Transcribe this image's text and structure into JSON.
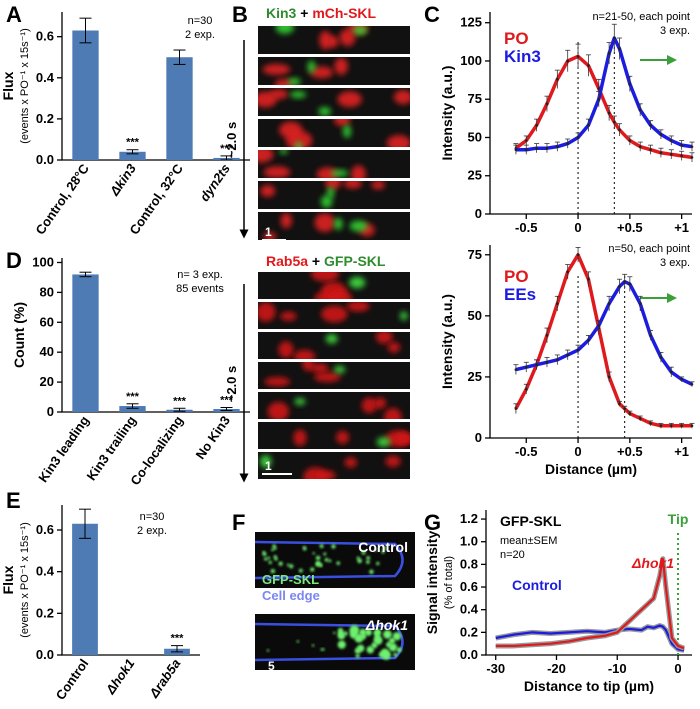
{
  "panel_letters": [
    "A",
    "B",
    "C",
    "D",
    "E",
    "F",
    "G"
  ],
  "chart_data": [
    {
      "type": "bar",
      "categories": [
        "Control, 28°C",
        "Δkin3",
        "Control, 32°C",
        "dyn2ts"
      ],
      "values": [
        0.63,
        0.04,
        0.5,
        0.01
      ],
      "errors": [
        0.06,
        0.01,
        0.035,
        0.01
      ],
      "significance": [
        null,
        "***",
        null,
        "***"
      ],
      "color": "#4f7bb5",
      "ylabel": [
        "Flux",
        "(events x PO⁻¹ x 15s⁻¹)"
      ],
      "annotation": [
        "n=30",
        "2 exp."
      ],
      "ylim": [
        0,
        0.72
      ],
      "yticks": [
        {
          "value": 0,
          "label": "0.0"
        },
        {
          "value": 0.2,
          "label": "0.2"
        },
        {
          "value": 0.4,
          "label": "0.4"
        },
        {
          "value": 0.6,
          "label": "0.6"
        }
      ]
    },
    {
      "type": "line",
      "annotation": [
        "n=21-50, each point",
        "3 exp."
      ],
      "ylabel": [
        "Intensity (a.u.)"
      ],
      "x": [
        -0.6,
        -0.5,
        -0.4,
        -0.3,
        -0.2,
        -0.1,
        0,
        0.1,
        0.2,
        0.3,
        0.35,
        0.4,
        0.5,
        0.6,
        0.7,
        0.8,
        0.9,
        1.0,
        1.1
      ],
      "series": [
        {
          "name": "PO",
          "color": "#e0191c",
          "values": [
            43,
            48,
            58,
            72,
            88,
            100,
            103,
            97,
            82,
            66,
            60,
            55,
            48,
            44,
            42,
            40,
            39,
            38,
            37
          ],
          "errors": [
            3,
            3,
            4,
            5,
            6,
            7,
            8,
            7,
            6,
            5,
            4,
            4,
            3,
            3,
            3,
            3,
            3,
            3,
            3
          ]
        },
        {
          "name": "Kin3",
          "color": "#1c1ce0",
          "values": [
            42,
            42,
            43,
            43,
            44,
            46,
            50,
            58,
            75,
            105,
            115,
            108,
            85,
            68,
            58,
            52,
            48,
            45,
            44
          ],
          "errors": [
            3,
            3,
            3,
            3,
            3,
            3,
            3,
            4,
            5,
            7,
            9,
            7,
            5,
            4,
            3,
            3,
            3,
            3,
            3
          ]
        }
      ],
      "vlines": [
        0,
        0.35
      ],
      "xlim": [
        -0.85,
        1.1
      ],
      "xticks": [
        -0.5,
        0,
        {
          "value": 0.5,
          "label": "+0.5"
        },
        {
          "value": 1,
          "label": "+1"
        }
      ],
      "ylim": [
        0,
        132
      ],
      "yticks": [
        0,
        25,
        50,
        75,
        100,
        125
      ]
    },
    {
      "type": "bar",
      "categories": [
        "Kin3 leading",
        "Kin3 trailing",
        "Co-localizing",
        "No Kin3"
      ],
      "values": [
        92,
        4,
        1.5,
        2
      ],
      "errors": [
        1.5,
        1.5,
        1,
        1
      ],
      "significance": [
        null,
        "***",
        "***",
        "***"
      ],
      "color": "#4f7bb5",
      "ylabel": [
        "Count (%)"
      ],
      "annotation": [
        "n= 3 exp.",
        "85 events"
      ],
      "ylim": [
        0,
        103
      ],
      "yticks": [
        0,
        20,
        40,
        60,
        80,
        100
      ]
    },
    {
      "type": "line",
      "annotation": [
        "n=50, each point",
        "3 exp."
      ],
      "ylabel": [
        "Intensity (a.u.)"
      ],
      "xlabel": "Distance (µm)",
      "x": [
        -0.6,
        -0.5,
        -0.4,
        -0.3,
        -0.2,
        -0.1,
        0,
        0.1,
        0.2,
        0.3,
        0.4,
        0.45,
        0.5,
        0.6,
        0.7,
        0.8,
        0.9,
        1.0,
        1.1
      ],
      "series": [
        {
          "name": "PO",
          "color": "#e0191c",
          "values": [
            12,
            20,
            30,
            42,
            55,
            68,
            75,
            65,
            45,
            25,
            14,
            12,
            10,
            8,
            6,
            5,
            5,
            5,
            5
          ],
          "errors": [
            2,
            2,
            2,
            3,
            3,
            3,
            3,
            3,
            3,
            2,
            1,
            1,
            1,
            1,
            1,
            1,
            1,
            1,
            1
          ]
        },
        {
          "name": "EEs",
          "color": "#1c1ce0",
          "values": [
            28,
            29,
            30,
            31,
            32,
            34,
            36,
            40,
            46,
            55,
            62,
            64,
            63,
            55,
            42,
            33,
            27,
            24,
            22
          ],
          "errors": [
            2,
            2,
            2,
            2,
            2,
            2,
            2,
            2,
            2,
            3,
            3,
            3,
            3,
            3,
            2,
            2,
            2,
            1,
            1
          ]
        }
      ],
      "vlines": [
        0,
        0.45
      ],
      "xlim": [
        -0.85,
        1.1
      ],
      "xticks": [
        -0.5,
        0,
        {
          "value": 0.5,
          "label": "+0.5"
        },
        {
          "value": 1,
          "label": "+1"
        }
      ],
      "ylim": [
        0,
        79
      ],
      "yticks": [
        0,
        25,
        50,
        75
      ]
    },
    {
      "type": "bar",
      "categories": [
        "Control",
        "Δhok1",
        "Δrab5a"
      ],
      "values": [
        0.63,
        0,
        0.03
      ],
      "errors": [
        0.07,
        0,
        0.015
      ],
      "significance": [
        null,
        null,
        "***"
      ],
      "color": "#4f7bb5",
      "ylabel": [
        "Flux",
        "(events x PO⁻¹ x 15s⁻¹)"
      ],
      "annotation": [
        "n=30",
        "2 exp."
      ],
      "ylim": [
        0,
        0.72
      ],
      "yticks": [
        {
          "value": 0,
          "label": "0.0"
        },
        {
          "value": 0.2,
          "label": "0.2"
        },
        {
          "value": 0.4,
          "label": "0.4"
        },
        {
          "value": 0.6,
          "label": "0.6"
        }
      ]
    },
    {
      "type": "line",
      "annotation": [
        "GFP-SKL",
        "mean±SEM",
        "n=20"
      ],
      "ylabel": [
        "Signal intensity",
        "(% of total)"
      ],
      "xlabel": "Distance to tip (µm)",
      "x": [
        -30,
        -27,
        -24,
        -21,
        -18,
        -15,
        -12,
        -10,
        -8,
        -6,
        -5,
        -4,
        -3,
        -2.5,
        -2,
        -1,
        0,
        1
      ],
      "series": [
        {
          "name": "Control",
          "color": "#1c1ce0",
          "values": [
            0.15,
            0.18,
            0.2,
            0.19,
            0.2,
            0.21,
            0.2,
            0.22,
            0.23,
            0.22,
            0.25,
            0.24,
            0.26,
            0.25,
            0.22,
            0.1,
            0.05,
            0.04
          ]
        },
        {
          "name": "Δhok1",
          "color": "#e0191c",
          "values": [
            0.08,
            0.08,
            0.09,
            0.1,
            0.12,
            0.15,
            0.17,
            0.2,
            0.3,
            0.4,
            0.45,
            0.5,
            0.7,
            0.85,
            0.6,
            0.15,
            0.08,
            0.06
          ]
        }
      ],
      "vlines": [
        0
      ],
      "vline_label": "Tip",
      "xlim": [
        -31.6,
        2.3
      ],
      "xticks": [
        -30,
        -20,
        -10,
        0
      ],
      "ylim": [
        0,
        1.28
      ],
      "yticks": [
        {
          "value": 0,
          "label": "0.0"
        },
        {
          "value": 0.2,
          "label": "0.2"
        },
        {
          "value": 0.4,
          "label": "0.4"
        },
        {
          "value": 0.6,
          "label": "0.6"
        },
        {
          "value": 0.8,
          "label": "0.8"
        },
        {
          "value": 1.0,
          "label": "1.0"
        },
        {
          "value": 1.2,
          "label": "1.2"
        }
      ]
    }
  ],
  "images": {
    "b_top": {
      "label_a": "Kin3",
      "joiner": "+",
      "label_b": "mCh-SKL",
      "time": "~2.0 s",
      "scale": "1"
    },
    "b_bottom": {
      "label_a": "Rab5a",
      "joiner": "+",
      "label_b": "GFP-SKL",
      "time": "~2.0 s",
      "scale": "1"
    },
    "f_top": {
      "label": "Control",
      "legend_a": "GFP-SKL",
      "legend_b": "Cell edge"
    },
    "f_bottom": {
      "label": "Δhok1",
      "scale": "5"
    }
  }
}
